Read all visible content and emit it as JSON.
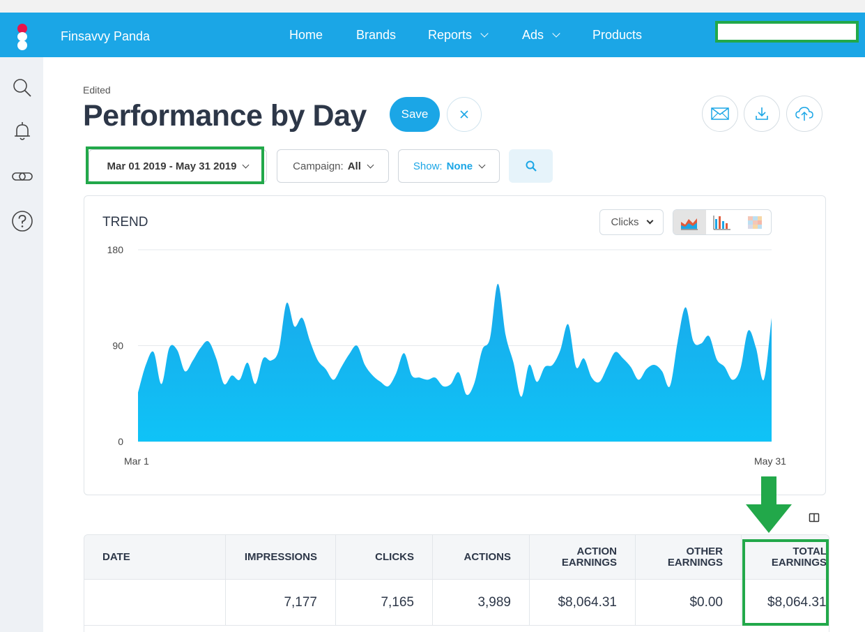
{
  "app": {
    "name": "Finsavvy Panda"
  },
  "nav": {
    "items": [
      {
        "label": "Home",
        "dropdown": false
      },
      {
        "label": "Brands",
        "dropdown": false
      },
      {
        "label": "Reports",
        "dropdown": true
      },
      {
        "label": "Ads",
        "dropdown": true
      },
      {
        "label": "Products",
        "dropdown": false
      }
    ]
  },
  "sidebar": {
    "icons": [
      "search-icon",
      "bell-icon",
      "link-icon",
      "help-icon"
    ]
  },
  "page": {
    "status": "Edited",
    "title": "Performance by Day",
    "save_label": "Save"
  },
  "filters": {
    "date_range": "Mar 01 2019 - May 31 2019",
    "campaign_label": "Campaign:",
    "campaign_value": "All",
    "show_label": "Show:",
    "show_value": "None"
  },
  "trend": {
    "title": "TREND",
    "metric": "Clicks"
  },
  "chart_data": {
    "type": "area",
    "title": "TREND",
    "metric": "Clicks",
    "x_start_label": "Mar 1",
    "x_end_label": "May 31",
    "y_ticks": [
      0,
      90,
      180
    ],
    "ylim": [
      0,
      180
    ],
    "grid": true,
    "color": "#1ab1ec",
    "values": [
      46,
      72,
      84,
      54,
      88,
      86,
      66,
      76,
      88,
      94,
      78,
      54,
      62,
      58,
      74,
      54,
      78,
      76,
      86,
      130,
      108,
      116,
      94,
      76,
      68,
      58,
      70,
      82,
      90,
      72,
      62,
      56,
      52,
      64,
      83,
      62,
      60,
      58,
      60,
      52,
      54,
      65,
      44,
      55,
      86,
      97,
      148,
      100,
      74,
      42,
      72,
      56,
      70,
      72,
      86,
      110,
      70,
      78,
      60,
      56,
      70,
      84,
      78,
      70,
      58,
      68,
      72,
      66,
      52,
      94,
      126,
      94,
      92,
      99,
      77,
      70,
      58,
      68,
      104,
      88,
      58,
      116
    ]
  },
  "table": {
    "headers": [
      "DATE",
      "IMPRESSIONS",
      "CLICKS",
      "ACTIONS",
      "ACTION EARNINGS",
      "OTHER EARNINGS",
      "TOTAL EARNINGS"
    ],
    "rows": [
      [
        "",
        "7,177",
        "7,165",
        "3,989",
        "$8,064.31",
        "$0.00",
        "$8,064.31"
      ]
    ]
  },
  "colors": {
    "primary": "#1ba6e6",
    "highlight": "#22a84a",
    "logo_red": "#e8154b"
  }
}
